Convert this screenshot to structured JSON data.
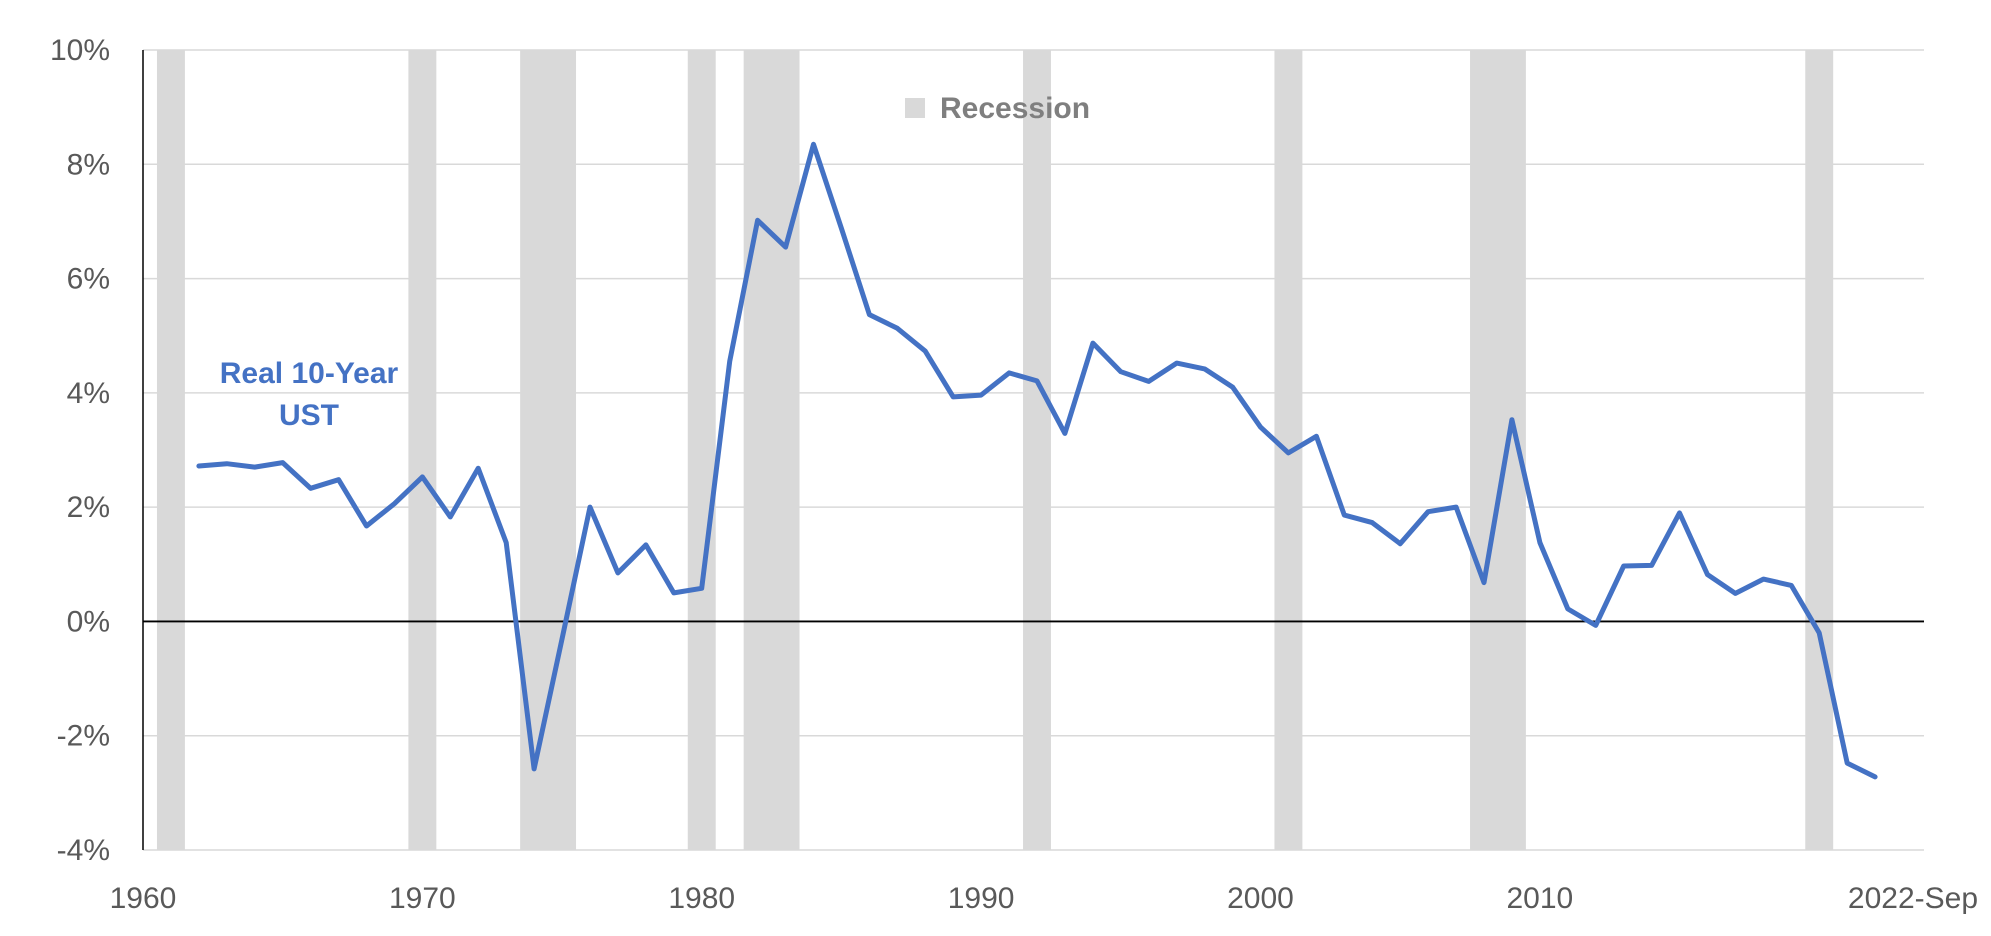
{
  "chart_data": {
    "type": "line",
    "title": "",
    "xlabel": "",
    "ylabel": "",
    "xlim": [
      1960,
      2023.75
    ],
    "ylim": [
      -4,
      10
    ],
    "y_ticks": [
      {
        "value": -4,
        "label": "-4%"
      },
      {
        "value": -2,
        "label": "-2%"
      },
      {
        "value": 0,
        "label": "0%"
      },
      {
        "value": 2,
        "label": "2%"
      },
      {
        "value": 4,
        "label": "4%"
      },
      {
        "value": 6,
        "label": "6%"
      },
      {
        "value": 8,
        "label": "8%"
      },
      {
        "value": 10,
        "label": "10%"
      }
    ],
    "x_ticks": [
      {
        "value": 1960,
        "label": "1960"
      },
      {
        "value": 1970,
        "label": "1970"
      },
      {
        "value": 1980,
        "label": "1980"
      },
      {
        "value": 1990,
        "label": "1990"
      },
      {
        "value": 2000,
        "label": "2000"
      },
      {
        "value": 2010,
        "label": "2010"
      },
      {
        "value": 2022.75,
        "label": "2022-Sep"
      }
    ],
    "gridlines": true,
    "legend": {
      "position": "top-center",
      "entries": [
        {
          "name": "Recession",
          "color": "#d9d9d9"
        }
      ]
    },
    "recessions": [
      {
        "start": 1960.5,
        "end": 1961.5
      },
      {
        "start": 1969.5,
        "end": 1970.5
      },
      {
        "start": 1973.5,
        "end": 1975.5
      },
      {
        "start": 1979.5,
        "end": 1980.5
      },
      {
        "start": 1981.5,
        "end": 1983.5
      },
      {
        "start": 1991.5,
        "end": 1992.5
      },
      {
        "start": 2000.5,
        "end": 2001.5
      },
      {
        "start": 2007.5,
        "end": 2009.5
      },
      {
        "start": 2019.5,
        "end": 2020.5
      }
    ],
    "series": [
      {
        "name": "Real 10-Year UST",
        "label": "Real 10-Year\nUST",
        "color": "#4472c4",
        "points": [
          [
            1962,
            2.72
          ],
          [
            1963,
            2.76
          ],
          [
            1964,
            2.7
          ],
          [
            1965,
            2.78
          ],
          [
            1966,
            2.33
          ],
          [
            1967,
            2.48
          ],
          [
            1968,
            1.67
          ],
          [
            1969,
            2.06
          ],
          [
            1970,
            2.53
          ],
          [
            1971,
            1.83
          ],
          [
            1972,
            2.68
          ],
          [
            1973,
            1.38
          ],
          [
            1974,
            -2.58
          ],
          [
            1975,
            -0.3
          ],
          [
            1976,
            2.0
          ],
          [
            1977,
            0.85
          ],
          [
            1978,
            1.34
          ],
          [
            1979,
            0.5
          ],
          [
            1980,
            0.58
          ],
          [
            1981,
            4.55
          ],
          [
            1982,
            7.02
          ],
          [
            1983,
            6.55
          ],
          [
            1984,
            8.35
          ],
          [
            1985,
            6.88
          ],
          [
            1986,
            5.37
          ],
          [
            1987,
            5.13
          ],
          [
            1988,
            4.73
          ],
          [
            1989,
            3.93
          ],
          [
            1990,
            3.96
          ],
          [
            1991,
            4.35
          ],
          [
            1992,
            4.21
          ],
          [
            1993,
            3.29
          ],
          [
            1994,
            4.87
          ],
          [
            1995,
            4.37
          ],
          [
            1996,
            4.2
          ],
          [
            1997,
            4.52
          ],
          [
            1998,
            4.42
          ],
          [
            1999,
            4.1
          ],
          [
            2000,
            3.4
          ],
          [
            2001,
            2.95
          ],
          [
            2002,
            3.24
          ],
          [
            2003,
            1.86
          ],
          [
            2004,
            1.73
          ],
          [
            2005,
            1.36
          ],
          [
            2006,
            1.92
          ],
          [
            2007,
            2.0
          ],
          [
            2008,
            0.68
          ],
          [
            2009,
            3.53
          ],
          [
            2010,
            1.38
          ],
          [
            2011,
            0.22
          ],
          [
            2012,
            -0.07
          ],
          [
            2013,
            0.97
          ],
          [
            2014,
            0.98
          ],
          [
            2015,
            1.9
          ],
          [
            2016,
            0.82
          ],
          [
            2017,
            0.49
          ],
          [
            2018,
            0.74
          ],
          [
            2019,
            0.63
          ],
          [
            2020,
            -0.2
          ],
          [
            2021,
            -2.48
          ],
          [
            2022,
            -2.72
          ]
        ]
      }
    ]
  }
}
